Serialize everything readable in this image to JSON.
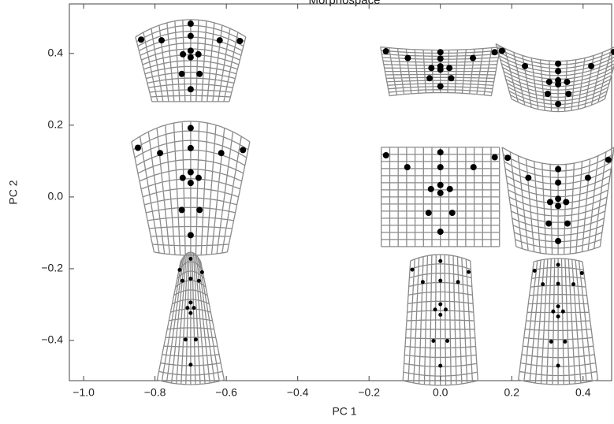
{
  "chart_data": {
    "type": "scatter",
    "title": "Morphospace",
    "x_label": "PC 1",
    "y_label": "PC 2",
    "x": [
      -0.7,
      0,
      0.33,
      -0.7,
      0,
      0.33,
      -0.7,
      0,
      0.33
    ],
    "y": [
      0.356,
      0.35,
      0.35,
      0,
      0,
      0,
      -0.345,
      -0.345,
      -0.345
    ],
    "color": "#8a8a8a",
    "xlim": [
      -1.04,
      0.48
    ],
    "xticks": [
      {
        "value": -1.0,
        "label": "−1.0"
      },
      {
        "value": -0.8,
        "label": "−0.8"
      },
      {
        "value": -0.6,
        "label": "−0.6"
      },
      {
        "value": -0.4,
        "label": "−0.4"
      },
      {
        "value": -0.2,
        "label": "−0.2"
      },
      {
        "value": 0,
        "label": "0.0"
      },
      0.2,
      0.4
    ],
    "ylim": [
      -0.512,
      0.538
    ],
    "yticks": [
      {
        "value": -0.4,
        "label": "−0.4"
      },
      {
        "value": -0.2,
        "label": "−0.2"
      },
      {
        "value": 0,
        "label": "0.0"
      },
      0.2,
      0.4
    ]
  }
}
